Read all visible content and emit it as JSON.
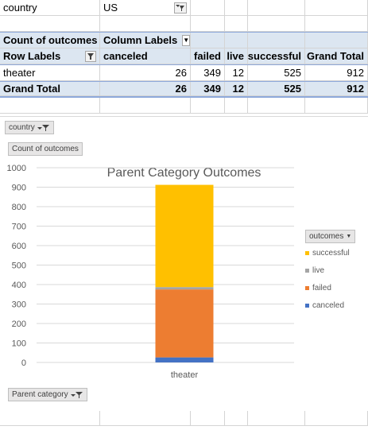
{
  "filter_row": {
    "label": "country",
    "value": "US"
  },
  "pivot": {
    "value_field": "Count of outcomes",
    "column_labels": "Column Labels",
    "row_labels": "Row Labels",
    "columns": [
      "canceled",
      "failed",
      "live",
      "successful",
      "Grand Total"
    ],
    "rows": [
      {
        "label": "theater",
        "values": [
          "26",
          "349",
          "12",
          "525",
          "912"
        ]
      }
    ],
    "grand_total": {
      "label": "Grand Total",
      "values": [
        "26",
        "349",
        "12",
        "525",
        "912"
      ]
    }
  },
  "chart_buttons": {
    "country": "country",
    "value": "Count of outcomes",
    "axis": "Parent category",
    "legend_title": "outcomes"
  },
  "chart_data": {
    "type": "bar",
    "stacked": true,
    "title": "Parent Category Outcomes",
    "categories": [
      "theater"
    ],
    "series": [
      {
        "name": "canceled",
        "values": [
          26
        ],
        "color": "#4472c4"
      },
      {
        "name": "failed",
        "values": [
          349
        ],
        "color": "#ed7d31"
      },
      {
        "name": "live",
        "values": [
          12
        ],
        "color": "#a5a5a5"
      },
      {
        "name": "successful",
        "values": [
          525
        ],
        "color": "#ffc000"
      }
    ],
    "ylim": [
      0,
      1000
    ],
    "yticks": [
      "0",
      "100",
      "200",
      "300",
      "400",
      "500",
      "600",
      "700",
      "800",
      "900",
      "1000"
    ],
    "grid": true,
    "legend": "right",
    "legend_order": [
      "successful",
      "live",
      "failed",
      "canceled"
    ]
  }
}
